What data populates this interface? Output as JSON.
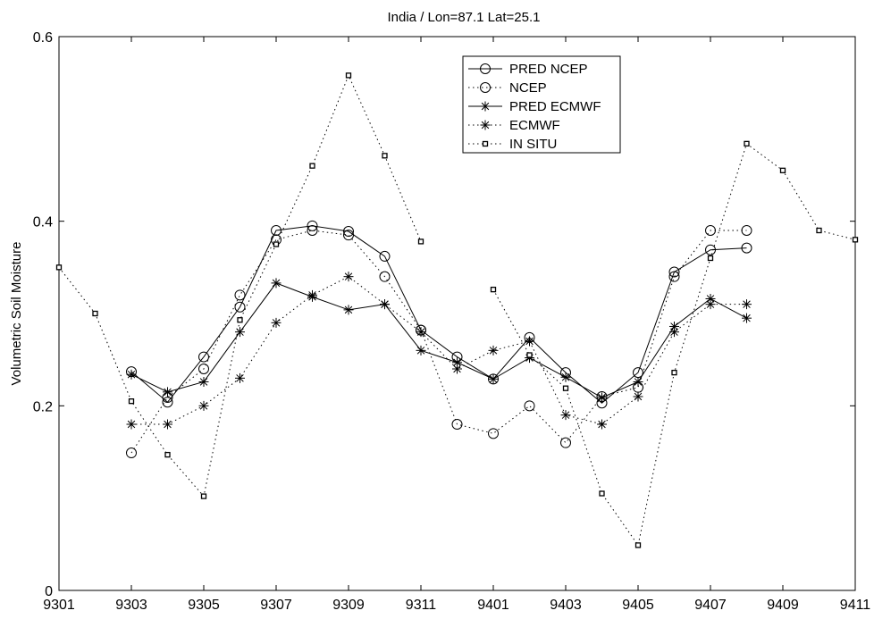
{
  "chart_data": {
    "type": "line",
    "title": "India / Lon=87.1 Lat=25.1",
    "xlabel": "",
    "ylabel": "Volumetric Soil Moisture",
    "x_ticks": [
      "9301",
      "9303",
      "9305",
      "9307",
      "9309",
      "9311",
      "9401",
      "9403",
      "9405",
      "9407",
      "9409",
      "9411"
    ],
    "y_ticks": [
      "0",
      "0.2",
      "0.4",
      "0.6"
    ],
    "xlim": [
      "9301",
      "9411"
    ],
    "ylim": [
      0,
      0.6
    ],
    "legend_position": "top-center",
    "grid": false,
    "series": [
      {
        "name": "PRED NCEP",
        "line": "solid",
        "marker": "circle",
        "points": [
          [
            "9303",
            0.237
          ],
          [
            "9304",
            0.204
          ],
          [
            "9305",
            0.253
          ],
          [
            "9306",
            0.307
          ],
          [
            "9307",
            0.39
          ],
          [
            "9308",
            0.395
          ],
          [
            "9309",
            0.389
          ],
          [
            "9310",
            0.362
          ],
          [
            "9311",
            0.282
          ],
          [
            "9312",
            0.253
          ],
          [
            "9401",
            0.229
          ],
          [
            "9402",
            0.274
          ],
          [
            "9403",
            0.236
          ],
          [
            "9404",
            0.203
          ],
          [
            "9405",
            0.236
          ],
          [
            "9406",
            0.345
          ],
          [
            "9407",
            0.369
          ],
          [
            "9408",
            0.371
          ]
        ]
      },
      {
        "name": "NCEP",
        "line": "dotted",
        "marker": "circle",
        "points": [
          [
            "9303",
            0.149
          ],
          [
            "9304",
            0.209
          ],
          [
            "9305",
            0.24
          ],
          [
            "9306",
            0.32
          ],
          [
            "9307",
            0.38
          ],
          [
            "9308",
            0.39
          ],
          [
            "9309",
            0.385
          ],
          [
            "9310",
            0.34
          ],
          [
            "9311",
            0.282
          ],
          [
            "9312",
            0.18
          ],
          [
            "9401",
            0.17
          ],
          [
            "9402",
            0.2
          ],
          [
            "9403",
            0.16
          ],
          [
            "9404",
            0.21
          ],
          [
            "9405",
            0.22
          ],
          [
            "9406",
            0.34
          ],
          [
            "9407",
            0.39
          ],
          [
            "9408",
            0.39
          ]
        ]
      },
      {
        "name": "PRED ECMWF",
        "line": "solid",
        "marker": "asterisk",
        "points": [
          [
            "9303",
            0.234
          ],
          [
            "9304",
            0.215
          ],
          [
            "9305",
            0.226
          ],
          [
            "9306",
            0.28
          ],
          [
            "9307",
            0.333
          ],
          [
            "9308",
            0.318
          ],
          [
            "9309",
            0.304
          ],
          [
            "9310",
            0.31
          ],
          [
            "9311",
            0.26
          ],
          [
            "9312",
            0.247
          ],
          [
            "9401",
            0.229
          ],
          [
            "9402",
            0.252
          ],
          [
            "9403",
            0.231
          ],
          [
            "9404",
            0.209
          ],
          [
            "9405",
            0.226
          ],
          [
            "9406",
            0.286
          ],
          [
            "9407",
            0.316
          ],
          [
            "9408",
            0.295
          ]
        ]
      },
      {
        "name": "ECMWF",
        "line": "dotted",
        "marker": "asterisk",
        "points": [
          [
            "9303",
            0.18
          ],
          [
            "9304",
            0.18
          ],
          [
            "9305",
            0.2
          ],
          [
            "9306",
            0.23
          ],
          [
            "9307",
            0.29
          ],
          [
            "9308",
            0.32
          ],
          [
            "9309",
            0.34
          ],
          [
            "9310",
            0.31
          ],
          [
            "9311",
            0.28
          ],
          [
            "9312",
            0.24
          ],
          [
            "9401",
            0.26
          ],
          [
            "9402",
            0.27
          ],
          [
            "9403",
            0.19
          ],
          [
            "9404",
            0.18
          ],
          [
            "9405",
            0.21
          ],
          [
            "9406",
            0.28
          ],
          [
            "9407",
            0.31
          ],
          [
            "9408",
            0.31
          ]
        ]
      },
      {
        "name": "IN SITU",
        "line": "dotted",
        "marker": "square",
        "segments": [
          [
            [
              "9301",
              0.35
            ],
            [
              "9302",
              0.3
            ],
            [
              "9303",
              0.205
            ],
            [
              "9304",
              0.147
            ],
            [
              "9305",
              0.102
            ],
            [
              "9306",
              0.293
            ],
            [
              "9307",
              0.375
            ],
            [
              "9308",
              0.46
            ],
            [
              "9309",
              0.558
            ],
            [
              "9310",
              0.471
            ],
            [
              "9311",
              0.378
            ]
          ],
          [
            [
              "9401",
              0.326
            ],
            [
              "9402",
              0.255
            ],
            [
              "9403",
              0.219
            ],
            [
              "9404",
              0.105
            ],
            [
              "9405",
              0.049
            ],
            [
              "9406",
              0.236
            ],
            [
              "9407",
              0.36
            ],
            [
              "9408",
              0.484
            ],
            [
              "9409",
              0.455
            ],
            [
              "9410",
              0.39
            ],
            [
              "9411",
              0.38
            ]
          ]
        ]
      }
    ]
  }
}
